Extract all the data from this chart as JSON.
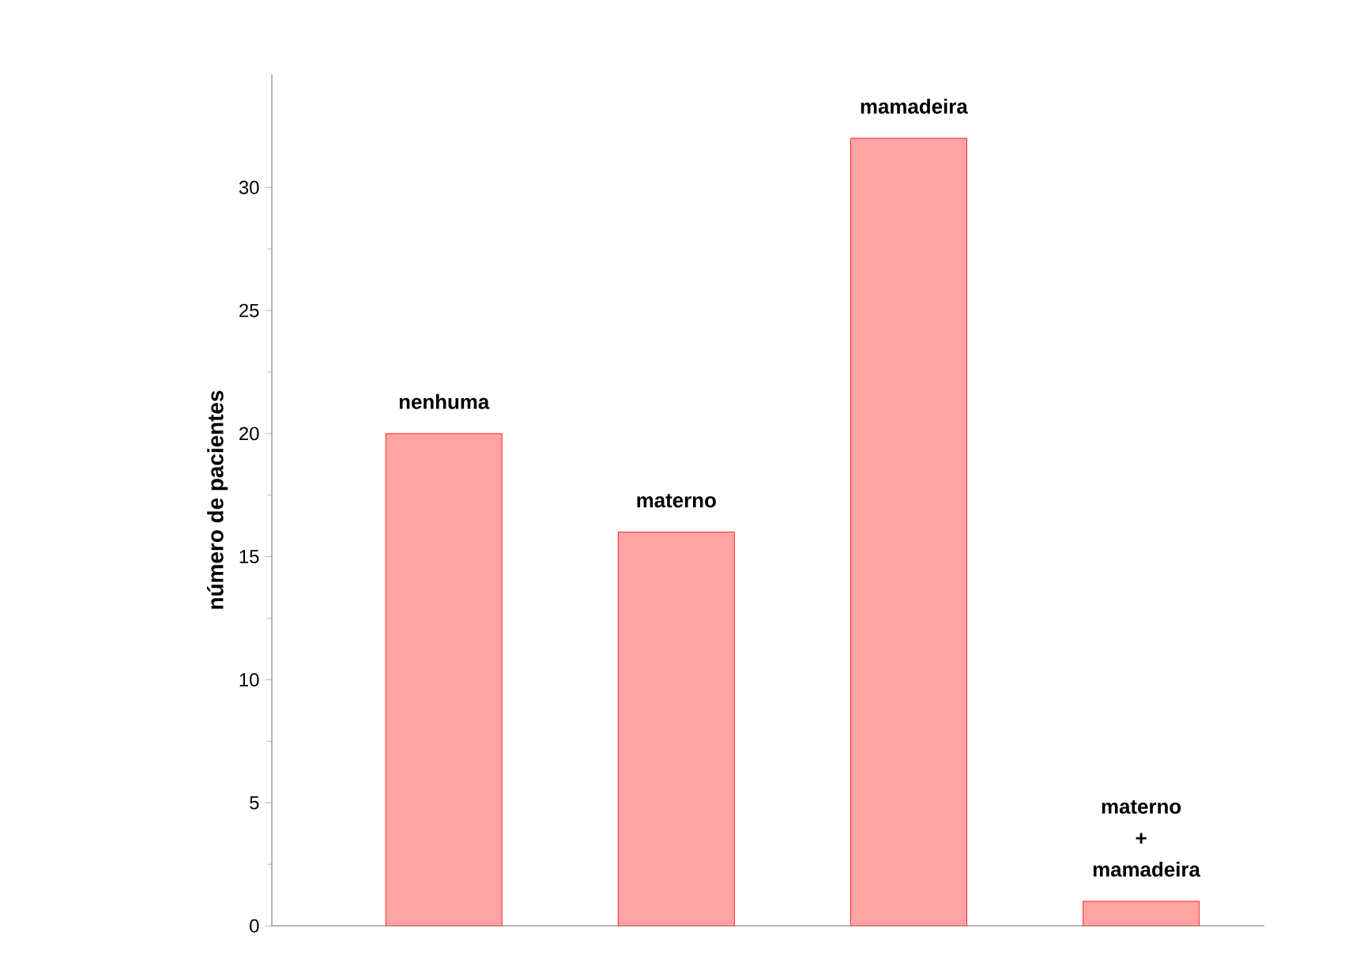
{
  "chart_data": {
    "type": "bar",
    "categories": [
      "nenhuma",
      "materno",
      "mamadeira",
      "materno + mamadeira"
    ],
    "values": [
      20,
      16,
      32,
      1
    ],
    "color": "#ffa3a3",
    "ylabel": "número de pacientes",
    "ylim": [
      0,
      34.6
    ],
    "yticks": [
      0,
      5,
      10,
      15,
      20,
      25,
      30
    ]
  }
}
